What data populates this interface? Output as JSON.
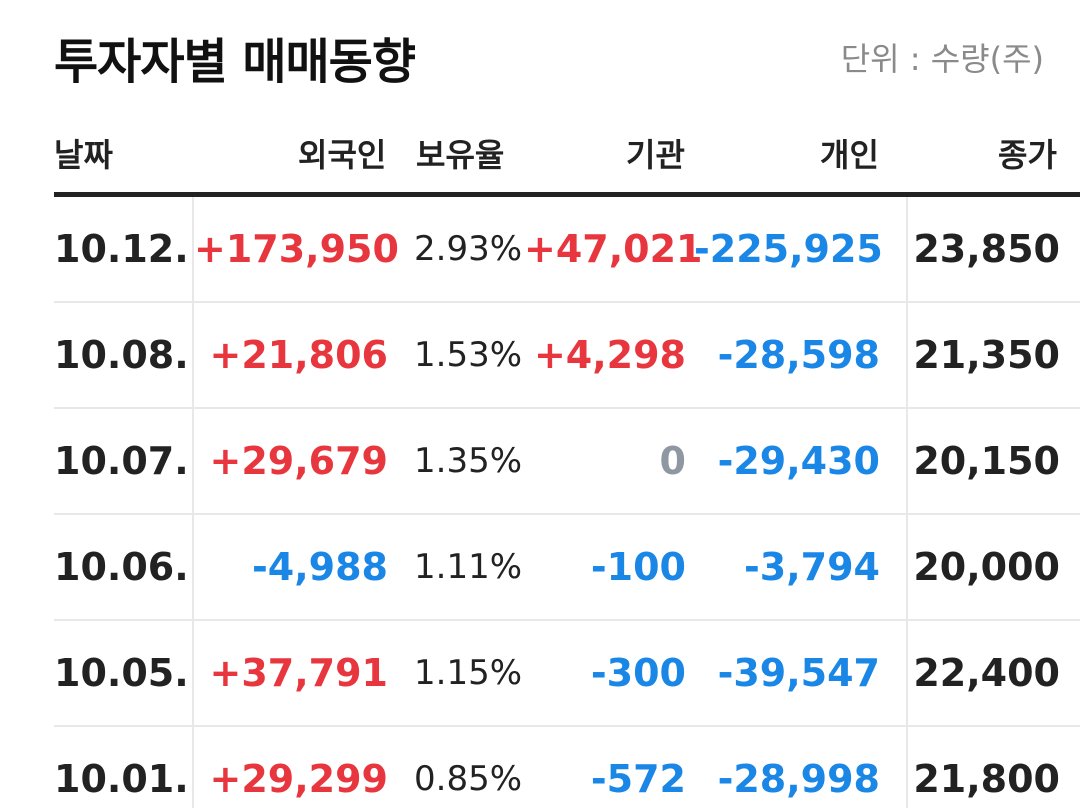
{
  "header": {
    "title": "투자자별 매매동향",
    "unit": "단위 : 수량(주)"
  },
  "table": {
    "columns": [
      "날짜",
      "외국인",
      "보유율",
      "기관",
      "개인",
      "종가"
    ],
    "rows": [
      {
        "date": "10.12.",
        "foreign": "+173,950",
        "ratio": "2.93%",
        "institution": "+47,021",
        "individual": "-225,925",
        "close": "23,850"
      },
      {
        "date": "10.08.",
        "foreign": "+21,806",
        "ratio": "1.53%",
        "institution": "+4,298",
        "individual": "-28,598",
        "close": "21,350"
      },
      {
        "date": "10.07.",
        "foreign": "+29,679",
        "ratio": "1.35%",
        "institution": "0",
        "individual": "-29,430",
        "close": "20,150"
      },
      {
        "date": "10.06.",
        "foreign": "-4,988",
        "ratio": "1.11%",
        "institution": "-100",
        "individual": "-3,794",
        "close": "20,000"
      },
      {
        "date": "10.05.",
        "foreign": "+37,791",
        "ratio": "1.15%",
        "institution": "-300",
        "individual": "-39,547",
        "close": "22,400"
      },
      {
        "date": "10.01.",
        "foreign": "+29,299",
        "ratio": "0.85%",
        "institution": "-572",
        "individual": "-28,998",
        "close": "21,800"
      }
    ]
  },
  "colors": {
    "positive": "#e8363f",
    "negative": "#1a86e6",
    "neutral": "#8f97a3"
  }
}
